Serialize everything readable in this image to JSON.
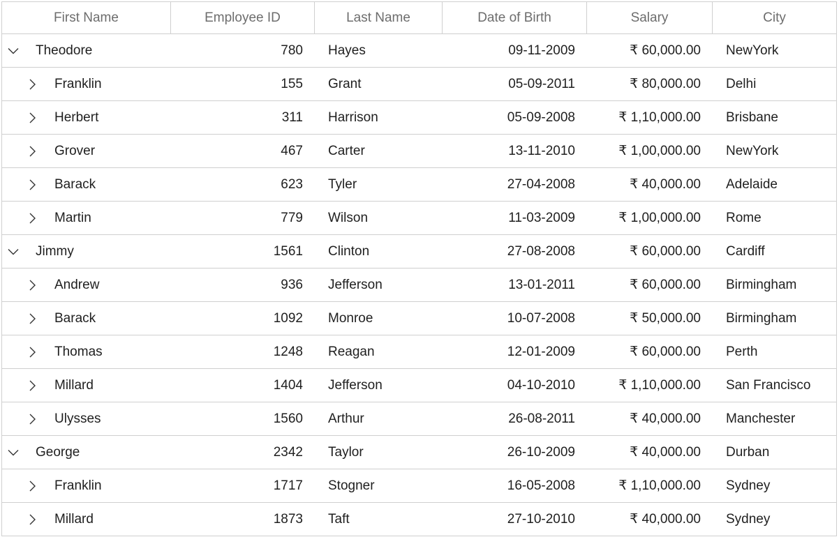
{
  "columns": [
    {
      "key": "first_name",
      "label": "First Name"
    },
    {
      "key": "employee_id",
      "label": "Employee ID"
    },
    {
      "key": "last_name",
      "label": "Last Name"
    },
    {
      "key": "dob",
      "label": "Date of Birth"
    },
    {
      "key": "salary",
      "label": "Salary"
    },
    {
      "key": "city",
      "label": "City"
    }
  ],
  "rows": [
    {
      "level": 0,
      "expanded": true,
      "first_name": "Theodore",
      "employee_id": "780",
      "last_name": "Hayes",
      "dob": "09-11-2009",
      "salary": "₹ 60,000.00",
      "city": "NewYork"
    },
    {
      "level": 1,
      "expanded": false,
      "first_name": "Franklin",
      "employee_id": "155",
      "last_name": "Grant",
      "dob": "05-09-2011",
      "salary": "₹ 80,000.00",
      "city": "Delhi"
    },
    {
      "level": 1,
      "expanded": false,
      "first_name": "Herbert",
      "employee_id": "311",
      "last_name": "Harrison",
      "dob": "05-09-2008",
      "salary": "₹ 1,10,000.00",
      "city": "Brisbane"
    },
    {
      "level": 1,
      "expanded": false,
      "first_name": "Grover",
      "employee_id": "467",
      "last_name": "Carter",
      "dob": "13-11-2010",
      "salary": "₹ 1,00,000.00",
      "city": "NewYork"
    },
    {
      "level": 1,
      "expanded": false,
      "first_name": "Barack",
      "employee_id": "623",
      "last_name": "Tyler",
      "dob": "27-04-2008",
      "salary": "₹ 40,000.00",
      "city": "Adelaide"
    },
    {
      "level": 1,
      "expanded": false,
      "first_name": "Martin",
      "employee_id": "779",
      "last_name": "Wilson",
      "dob": "11-03-2009",
      "salary": "₹ 1,00,000.00",
      "city": "Rome"
    },
    {
      "level": 0,
      "expanded": true,
      "first_name": "Jimmy",
      "employee_id": "1561",
      "last_name": "Clinton",
      "dob": "27-08-2008",
      "salary": "₹ 60,000.00",
      "city": "Cardiff"
    },
    {
      "level": 1,
      "expanded": false,
      "first_name": "Andrew",
      "employee_id": "936",
      "last_name": "Jefferson",
      "dob": "13-01-2011",
      "salary": "₹ 60,000.00",
      "city": "Birmingham"
    },
    {
      "level": 1,
      "expanded": false,
      "first_name": "Barack",
      "employee_id": "1092",
      "last_name": "Monroe",
      "dob": "10-07-2008",
      "salary": "₹ 50,000.00",
      "city": "Birmingham"
    },
    {
      "level": 1,
      "expanded": false,
      "first_name": "Thomas",
      "employee_id": "1248",
      "last_name": "Reagan",
      "dob": "12-01-2009",
      "salary": "₹ 60,000.00",
      "city": "Perth"
    },
    {
      "level": 1,
      "expanded": false,
      "first_name": "Millard",
      "employee_id": "1404",
      "last_name": "Jefferson",
      "dob": "04-10-2010",
      "salary": "₹ 1,10,000.00",
      "city": "San Francisco"
    },
    {
      "level": 1,
      "expanded": false,
      "first_name": "Ulysses",
      "employee_id": "1560",
      "last_name": "Arthur",
      "dob": "26-08-2011",
      "salary": "₹ 40,000.00",
      "city": "Manchester"
    },
    {
      "level": 0,
      "expanded": true,
      "first_name": "George",
      "employee_id": "2342",
      "last_name": "Taylor",
      "dob": "26-10-2009",
      "salary": "₹ 40,000.00",
      "city": "Durban"
    },
    {
      "level": 1,
      "expanded": false,
      "first_name": "Franklin",
      "employee_id": "1717",
      "last_name": "Stogner",
      "dob": "16-05-2008",
      "salary": "₹ 1,10,000.00",
      "city": "Sydney"
    },
    {
      "level": 1,
      "expanded": false,
      "first_name": "Millard",
      "employee_id": "1873",
      "last_name": "Taft",
      "dob": "27-10-2010",
      "salary": "₹ 40,000.00",
      "city": "Sydney"
    }
  ],
  "icons": {
    "expanded": "chevron-down-icon",
    "collapsed": "chevron-right-icon"
  },
  "colors": {
    "border": "#cfcfcf",
    "header_text": "#6d6d6d",
    "cell_text": "#1f1f1f"
  }
}
